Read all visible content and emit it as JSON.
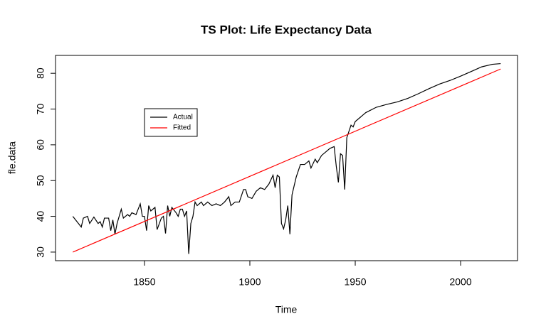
{
  "chart_data": {
    "type": "line",
    "title": "TS Plot: Life Expectancy Data",
    "xlabel": "Time",
    "ylabel": "fle.data",
    "xlim": [
      1807.8,
      2027
    ],
    "ylim": [
      27.6,
      85
    ],
    "xticks": [
      1850,
      1900,
      1950,
      2000
    ],
    "yticks": [
      30,
      40,
      50,
      60,
      70,
      80
    ],
    "legend": "upper left",
    "series": [
      {
        "name": "Actual",
        "color": "#000000",
        "x": [
          1816,
          1818,
          1820,
          1821,
          1823,
          1824,
          1826,
          1828,
          1829,
          1830,
          1831,
          1833,
          1834,
          1835,
          1836,
          1837,
          1839,
          1840,
          1842,
          1843,
          1844,
          1846,
          1848,
          1849,
          1850,
          1851,
          1852,
          1853,
          1855,
          1856,
          1858,
          1859,
          1860,
          1861,
          1862,
          1863,
          1865,
          1866,
          1867,
          1868,
          1869,
          1870,
          1871,
          1872,
          1873,
          1874,
          1875,
          1877,
          1878,
          1880,
          1882,
          1884,
          1886,
          1888,
          1890,
          1891,
          1893,
          1895,
          1897,
          1898,
          1899,
          1901,
          1903,
          1905,
          1907,
          1909,
          1911,
          1912,
          1913,
          1914,
          1915,
          1916,
          1917,
          1918,
          1919,
          1920,
          1922,
          1924,
          1926,
          1928,
          1929,
          1931,
          1932,
          1934,
          1936,
          1938,
          1940,
          1941,
          1942,
          1943,
          1944,
          1945,
          1946,
          1948,
          1949,
          1950,
          1955,
          1960,
          1965,
          1970,
          1975,
          1980,
          1985,
          1990,
          1995,
          2000,
          2005,
          2010,
          2015,
          2019
        ],
        "values": [
          40,
          38.5,
          37,
          39.5,
          40,
          38,
          39.8,
          38,
          38.5,
          37,
          39.5,
          39.5,
          36,
          39,
          35,
          38,
          42,
          39.5,
          40.5,
          40,
          41,
          40.5,
          43.5,
          40,
          40,
          36,
          43,
          41.5,
          42.5,
          36.3,
          39.5,
          40,
          35.2,
          43,
          40,
          42.5,
          41,
          40,
          42,
          42,
          40,
          41.5,
          29.5,
          38,
          40,
          44,
          43,
          44,
          43,
          44,
          43,
          43.5,
          43,
          44,
          45.5,
          43,
          44,
          44,
          47.5,
          47.5,
          45.5,
          45,
          47,
          48,
          47.5,
          49,
          51.5,
          48,
          51.5,
          51,
          38,
          36.5,
          39,
          43,
          35,
          46,
          51,
          54.5,
          54.5,
          55.5,
          53.5,
          56,
          55,
          57,
          58,
          59,
          59.5,
          54,
          49.5,
          57.5,
          57,
          47.5,
          62,
          65.5,
          65,
          66.5,
          69,
          70.5,
          71.3,
          72,
          73,
          74.3,
          75.7,
          77,
          78,
          79.2,
          80.5,
          81.8,
          82.5,
          82.7
        ]
      },
      {
        "name": "Fitted",
        "color": "#ff0000",
        "x": [
          1816,
          2019
        ],
        "values": [
          30,
          81.2
        ]
      }
    ]
  }
}
